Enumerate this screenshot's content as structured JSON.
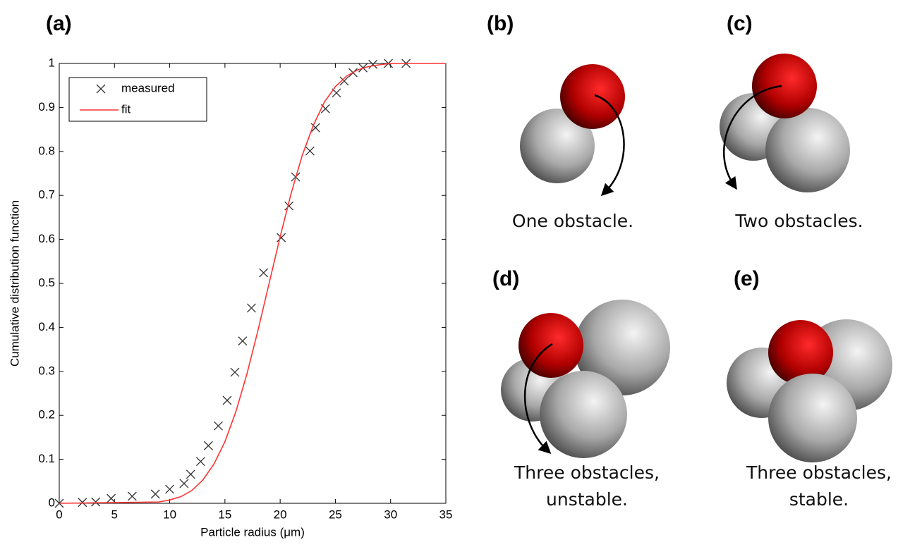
{
  "chart_data": {
    "type": "line",
    "panel_label": "(a)",
    "xlabel": "Particle radius (μm)",
    "ylabel": "Cumulative distribution function",
    "xlim": [
      0,
      35
    ],
    "ylim": [
      0,
      1
    ],
    "xticks": [
      0,
      5,
      10,
      15,
      20,
      25,
      30,
      35
    ],
    "yticks": [
      0,
      0.1,
      0.2,
      0.3,
      0.4,
      0.5,
      0.6,
      0.7,
      0.8,
      0.9,
      1
    ],
    "legend": "upper left",
    "series": [
      {
        "name": "measured",
        "color": "#333333",
        "marker": "x",
        "x": [
          0,
          2.1,
          3.3,
          4.7,
          6.6,
          8.7,
          10.0,
          11.3,
          11.9,
          12.8,
          13.5,
          14.4,
          15.2,
          15.9,
          16.6,
          17.4,
          18.5,
          20.1,
          20.8,
          21.4,
          22.7,
          23.2,
          24.1,
          25.1,
          25.8,
          26.6,
          27.5,
          28.4,
          29.8,
          31.4
        ],
        "values": [
          0,
          0.002,
          0.003,
          0.011,
          0.016,
          0.021,
          0.032,
          0.045,
          0.066,
          0.095,
          0.131,
          0.176,
          0.234,
          0.298,
          0.369,
          0.444,
          0.524,
          0.604,
          0.676,
          0.742,
          0.801,
          0.854,
          0.897,
          0.933,
          0.96,
          0.979,
          0.99,
          0.998,
          1,
          1
        ]
      },
      {
        "name": "fit",
        "color": "#ff3333",
        "marker": "none",
        "x": [
          0,
          9,
          10,
          11,
          12,
          13,
          14,
          15,
          16,
          17,
          18,
          19,
          20,
          21,
          22,
          23,
          24,
          25,
          26,
          27,
          28,
          29,
          30,
          35
        ],
        "values": [
          0,
          0.003,
          0.0075,
          0.015,
          0.029,
          0.053,
          0.089,
          0.14,
          0.209,
          0.295,
          0.394,
          0.5,
          0.606,
          0.705,
          0.791,
          0.859,
          0.912,
          0.947,
          0.971,
          0.985,
          0.993,
          0.997,
          1,
          1
        ]
      }
    ]
  },
  "panels": [
    {
      "label": "(b)",
      "caption": [
        "One obstacle."
      ]
    },
    {
      "label": "(c)",
      "caption": [
        "Two obstacles."
      ]
    },
    {
      "label": "(d)",
      "caption": [
        "Three obstacles,",
        "unstable."
      ]
    },
    {
      "label": "(e)",
      "caption": [
        "Three obstacles,",
        "stable."
      ]
    }
  ]
}
